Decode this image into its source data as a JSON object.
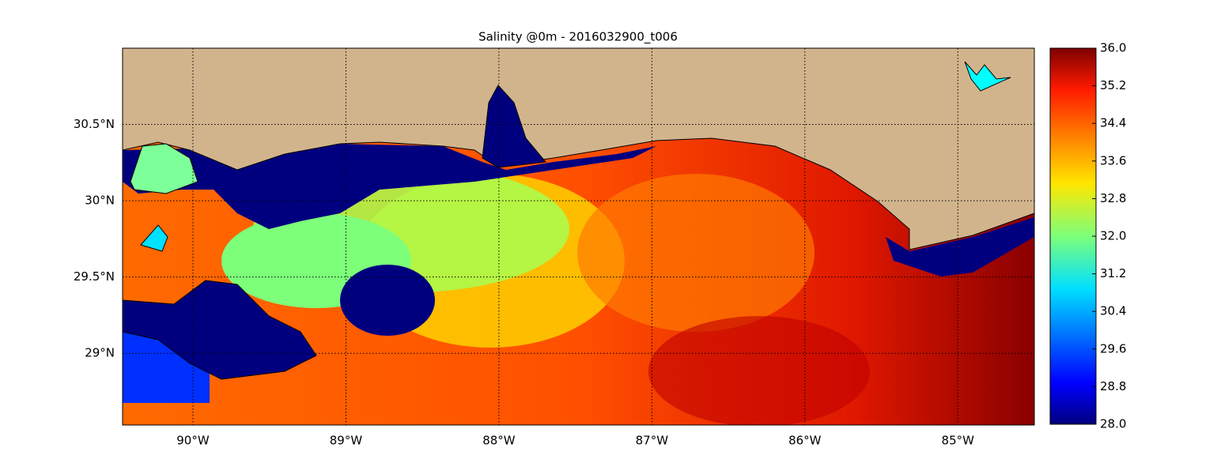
{
  "chart_data": {
    "type": "map",
    "title": "Salinity @0m - 2016032900_t006",
    "xlim": [
      -90.46,
      -84.5
    ],
    "xticks": [
      {
        "value": -90,
        "label": "90°W"
      },
      {
        "value": -89,
        "label": "89°W"
      },
      {
        "value": -88,
        "label": "88°W"
      },
      {
        "value": -87,
        "label": "87°W"
      },
      {
        "value": -86,
        "label": "86°W"
      },
      {
        "value": -85,
        "label": "85°W"
      }
    ],
    "ylim": [
      28.53,
      31.0
    ],
    "yticks": [
      {
        "value": 29,
        "label": "29°N"
      },
      {
        "value": 29.5,
        "label": "29.5°N"
      },
      {
        "value": 30,
        "label": "30°N"
      },
      {
        "value": 30.5,
        "label": "30.5°N"
      }
    ],
    "grid": true,
    "colorbar": {
      "lim": [
        28,
        36
      ],
      "ticks": [
        {
          "value": 28,
          "label": "28.0"
        },
        {
          "value": 28.8,
          "label": "28.8"
        },
        {
          "value": 29.6,
          "label": "29.6"
        },
        {
          "value": 30.4,
          "label": "30.4"
        },
        {
          "value": 31.2,
          "label": "31.2"
        },
        {
          "value": 32,
          "label": "32.0"
        },
        {
          "value": 32.8,
          "label": "32.8"
        },
        {
          "value": 33.6,
          "label": "33.6"
        },
        {
          "value": 34.4,
          "label": "34.4"
        },
        {
          "value": 35.2,
          "label": "35.2"
        },
        {
          "value": 36,
          "label": "36.0"
        }
      ]
    }
  }
}
